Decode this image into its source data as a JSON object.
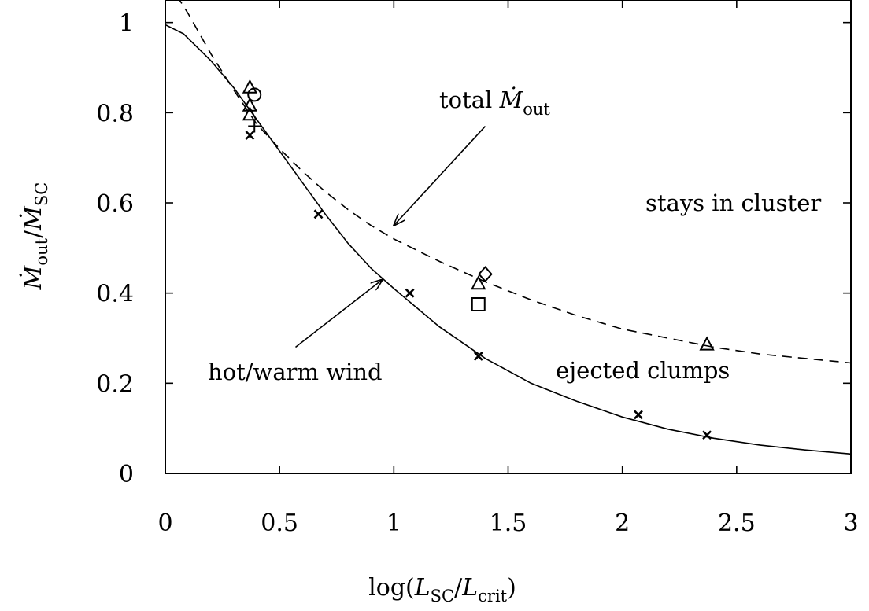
{
  "chart_data": {
    "type": "line",
    "xlabel": "log(L_SC/L_crit)",
    "ylabel": "Ṁ_out/Ṁ_SC",
    "xlim": [
      0,
      3
    ],
    "ylim": [
      0,
      1.05
    ],
    "xticks": [
      0,
      0.5,
      1,
      1.5,
      2,
      2.5,
      3
    ],
    "xtick_labels": [
      "0",
      "0.5",
      "1",
      "1.5",
      "2",
      "2.5",
      "3"
    ],
    "yticks": [
      0,
      0.2,
      0.4,
      0.6,
      0.8,
      1
    ],
    "ytick_labels": [
      "0",
      "0.2",
      "0.4",
      "0.6",
      "0.8",
      "1"
    ],
    "grid": false,
    "series": [
      {
        "style": "solid",
        "x": [
          0,
          0.08,
          0.2,
          0.3,
          0.4,
          0.5,
          0.6,
          0.7,
          0.8,
          0.9,
          1.0,
          1.2,
          1.4,
          1.6,
          1.8,
          2.0,
          2.2,
          2.4,
          2.6,
          2.8,
          3.0
        ],
        "y": [
          0.995,
          0.975,
          0.915,
          0.855,
          0.785,
          0.715,
          0.645,
          0.575,
          0.51,
          0.455,
          0.41,
          0.325,
          0.255,
          0.2,
          0.16,
          0.125,
          0.098,
          0.078,
          0.063,
          0.052,
          0.043
        ]
      },
      {
        "style": "dashed",
        "x": [
          0.05,
          0.1,
          0.2,
          0.3,
          0.4,
          0.5,
          0.6,
          0.7,
          0.8,
          0.9,
          1.0,
          1.2,
          1.4,
          1.6,
          1.8,
          2.0,
          2.2,
          2.4,
          2.6,
          2.8,
          3.0
        ],
        "y": [
          1.06,
          1.02,
          0.93,
          0.85,
          0.775,
          0.72,
          0.67,
          0.625,
          0.585,
          0.55,
          0.52,
          0.47,
          0.425,
          0.385,
          0.35,
          0.32,
          0.3,
          0.28,
          0.265,
          0.255,
          0.245
        ]
      }
    ],
    "markers": [
      {
        "shape": "x",
        "points": [
          [
            0.37,
            0.75
          ],
          [
            0.67,
            0.575
          ],
          [
            1.07,
            0.4
          ],
          [
            1.37,
            0.26
          ],
          [
            2.07,
            0.13
          ],
          [
            2.37,
            0.085
          ]
        ]
      },
      {
        "shape": "plus",
        "points": [
          [
            0.39,
            0.77
          ]
        ]
      },
      {
        "shape": "triangle",
        "points": [
          [
            0.37,
            0.855
          ],
          [
            0.37,
            0.815
          ],
          [
            0.37,
            0.795
          ],
          [
            1.37,
            0.42
          ],
          [
            2.37,
            0.285
          ]
        ]
      },
      {
        "shape": "circle",
        "points": [
          [
            0.39,
            0.84
          ]
        ]
      },
      {
        "shape": "diamond",
        "points": [
          [
            1.4,
            0.442
          ]
        ]
      },
      {
        "shape": "square",
        "points": [
          [
            1.37,
            0.375
          ]
        ]
      }
    ],
    "annotations": [
      {
        "text_plain": "total ",
        "math": "Ṁ",
        "sub": "out",
        "arrow_from": [
          1.4,
          0.77
        ],
        "arrow_to": [
          1.0,
          0.55
        ]
      },
      {
        "text": "stays in cluster"
      },
      {
        "text": "ejected clumps"
      },
      {
        "text": "hot/warm wind",
        "arrow_from": [
          0.57,
          0.28
        ],
        "arrow_to": [
          0.95,
          0.43
        ]
      }
    ]
  }
}
